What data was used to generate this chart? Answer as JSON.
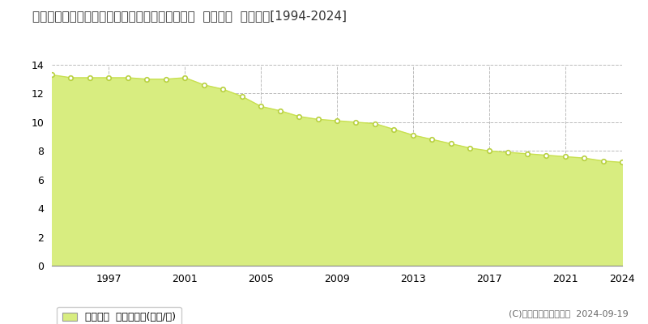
{
  "title": "群馬県甘楽郡甘楽町大字福島字多井戸根２番７外  公示地価  地価推移[1994-2024]",
  "years": [
    1994,
    1995,
    1996,
    1997,
    1998,
    1999,
    2000,
    2001,
    2002,
    2003,
    2004,
    2005,
    2006,
    2007,
    2008,
    2009,
    2010,
    2011,
    2012,
    2013,
    2014,
    2015,
    2016,
    2017,
    2018,
    2019,
    2020,
    2021,
    2022,
    2023,
    2024
  ],
  "values": [
    13.3,
    13.1,
    13.1,
    13.1,
    13.1,
    13.0,
    13.0,
    13.1,
    12.6,
    12.3,
    11.8,
    11.1,
    10.8,
    10.4,
    10.2,
    10.1,
    10.0,
    9.9,
    9.5,
    9.1,
    8.8,
    8.5,
    8.2,
    8.0,
    7.9,
    7.8,
    7.7,
    7.6,
    7.5,
    7.3,
    7.2
  ],
  "line_color": "#c8e050",
  "fill_color": "#d8ed80",
  "marker_facecolor": "#ffffff",
  "marker_edgecolor": "#b8d040",
  "background_color": "#ffffff",
  "grid_color": "#bbbbbb",
  "ylim": [
    0,
    14
  ],
  "yticks": [
    0,
    2,
    4,
    6,
    8,
    10,
    12,
    14
  ],
  "xticks": [
    1994,
    1997,
    2001,
    2005,
    2009,
    2013,
    2017,
    2021,
    2024
  ],
  "xtick_labels": [
    "",
    "1997",
    "2001",
    "2005",
    "2009",
    "2013",
    "2017",
    "2021",
    "2024"
  ],
  "legend_label": "公示地価  平均坪単価(万円/坪)",
  "copyright_text": "(C)土地価格ドットコム  2024-09-19",
  "title_fontsize": 11,
  "axis_fontsize": 9,
  "legend_fontsize": 9,
  "copyright_fontsize": 8
}
